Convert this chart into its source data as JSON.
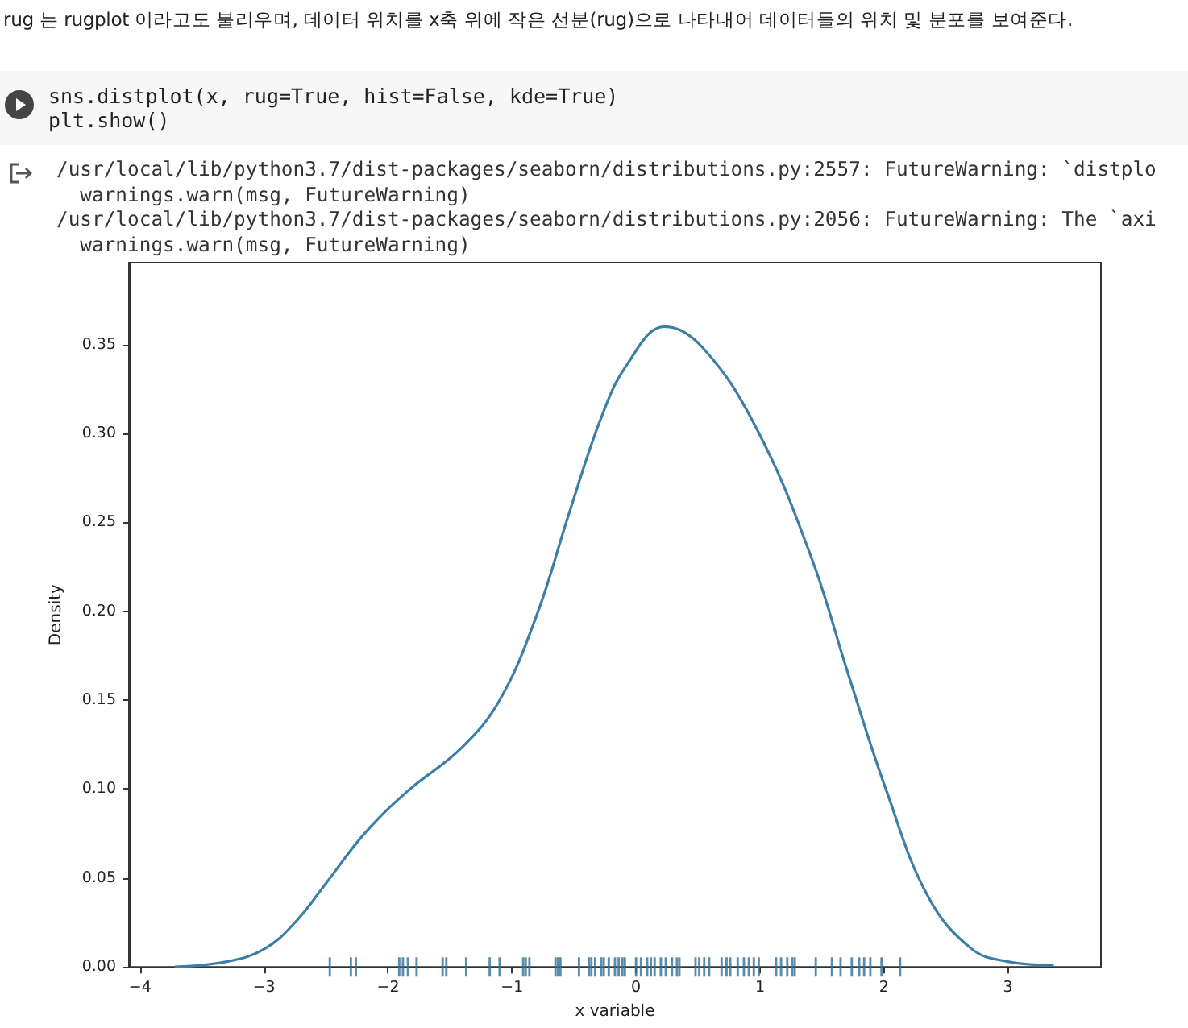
{
  "chart_data": {
    "type": "line",
    "annotations": [
      "rug 는 rugplot 이라고도 불리우며, 데이터 위치를 x축 위에 작은 선분(rug)으로 나타내어 데이터들의 위치 및 분포를 보여준다.",
      "sns.distplot(x, rug=True, hist=False, kde=True)\nplt.show()",
      "/usr/local/lib/python3.7/dist-packages/seaborn/distributions.py:2557: FutureWarning: `distplo\n  warnings.warn(msg, FutureWarning)\n/usr/local/lib/python3.7/dist-packages/seaborn/distributions.py:2056: FutureWarning: The `axi\n  warnings.warn(msg, FutureWarning)"
    ],
    "xlabel": "x variable",
    "ylabel": "Density",
    "xlim": [
      -4.09,
      3.75
    ],
    "xticks": [
      {
        "value": -4,
        "label": "−4"
      },
      {
        "value": -3,
        "label": "−3"
      },
      {
        "value": -2,
        "label": "−2"
      },
      {
        "value": -1,
        "label": "−1"
      },
      0,
      1,
      2,
      3
    ],
    "ylim": [
      0,
      0.396
    ],
    "yticks": [
      {
        "value": 0,
        "label": "0.00"
      },
      {
        "value": 0.05,
        "label": "0.05"
      },
      {
        "value": 0.1,
        "label": "0.10"
      },
      {
        "value": 0.15,
        "label": "0.15"
      },
      {
        "value": 0.2,
        "label": "0.20"
      },
      {
        "value": 0.25,
        "label": "0.25"
      },
      {
        "value": 0.3,
        "label": "0.30"
      },
      {
        "value": 0.35,
        "label": "0.35"
      }
    ],
    "grid": false,
    "series": [
      {
        "color": "#3b7ea8",
        "x": [
          -3.72,
          -3.3,
          -3.0,
          -2.75,
          -2.49,
          -2.19,
          -1.84,
          -1.41,
          -1.1,
          -0.8,
          -0.54,
          -0.28,
          -0.07,
          0.23,
          0.54,
          0.97,
          1.41,
          1.71,
          2.02,
          2.36,
          2.71,
          3.0,
          3.37
        ],
        "values": [
          0.0,
          0.003,
          0.01,
          0.025,
          0.048,
          0.075,
          0.099,
          0.123,
          0.15,
          0.198,
          0.255,
          0.309,
          0.339,
          0.36,
          0.348,
          0.303,
          0.231,
          0.165,
          0.099,
          0.039,
          0.01,
          0.003,
          0.001
        ]
      },
      {
        "type": "scatter",
        "color": "#2f6f99",
        "x": [
          -2.47,
          -2.3,
          -2.26,
          -1.91,
          -1.88,
          -1.84,
          -1.77,
          -1.56,
          -1.53,
          -1.37,
          -1.18,
          -1.1,
          -0.91,
          -0.89,
          -0.86,
          -0.65,
          -0.63,
          -0.61,
          -0.46,
          -0.38,
          -0.36,
          -0.33,
          -0.28,
          -0.26,
          -0.22,
          -0.17,
          -0.14,
          -0.11,
          -0.09,
          0.0,
          0.04,
          0.09,
          0.12,
          0.15,
          0.2,
          0.24,
          0.29,
          0.33,
          0.35,
          0.48,
          0.51,
          0.55,
          0.59,
          0.69,
          0.73,
          0.76,
          0.82,
          0.87,
          0.91,
          0.95,
          0.99,
          1.13,
          1.17,
          1.22,
          1.26,
          1.28,
          1.45,
          1.58,
          1.65,
          1.74,
          1.8,
          1.84,
          1.89,
          1.98,
          2.13
        ],
        "values": [
          0,
          0,
          0,
          0,
          0,
          0,
          0,
          0,
          0,
          0,
          0,
          0,
          0,
          0,
          0,
          0,
          0,
          0,
          0,
          0,
          0,
          0,
          0,
          0,
          0,
          0,
          0,
          0,
          0,
          0,
          0,
          0,
          0,
          0,
          0,
          0,
          0,
          0,
          0,
          0,
          0,
          0,
          0,
          0,
          0,
          0,
          0,
          0,
          0,
          0,
          0,
          0,
          0,
          0,
          0,
          0,
          0,
          0,
          0,
          0,
          0,
          0,
          0,
          0,
          0
        ]
      }
    ]
  }
}
